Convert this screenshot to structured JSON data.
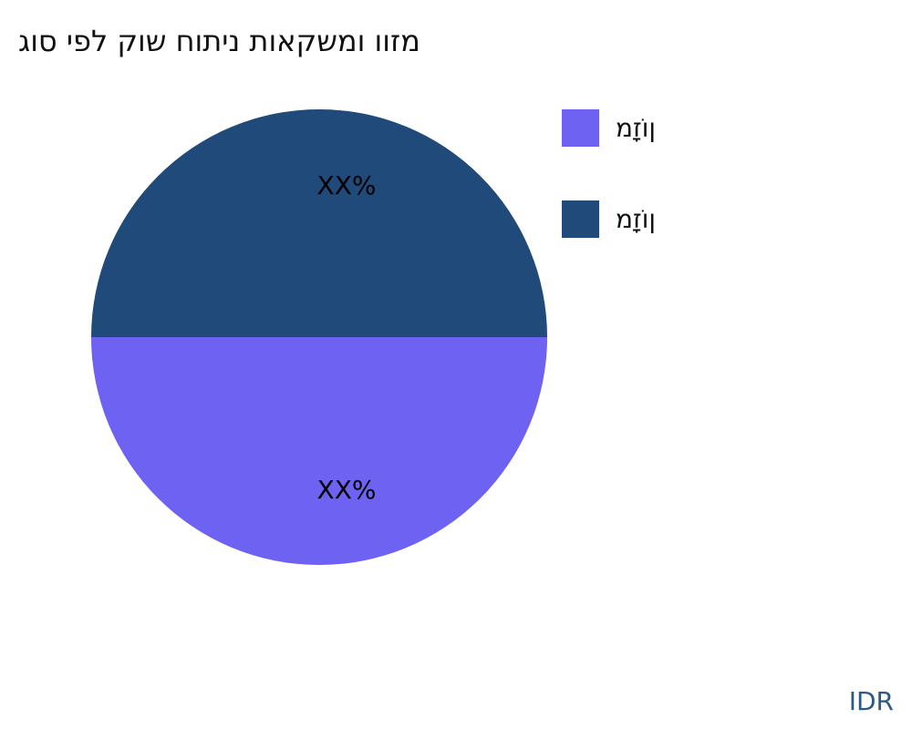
{
  "title": "גוס יפל קוש חותינ תואקשמו ווזמ",
  "brand": "IDR",
  "chart_data": {
    "type": "pie",
    "title": "גוס יפל קוש חותינ תואקשמו ווזמ",
    "slices": [
      {
        "name": "מזָוֹן",
        "value": 50,
        "label": "XX%",
        "color": "#6e62f2"
      },
      {
        "name": "מזָוֹן",
        "value": 50,
        "label": "XX%",
        "color": "#1f4a7a"
      }
    ],
    "legend_position": "right"
  }
}
